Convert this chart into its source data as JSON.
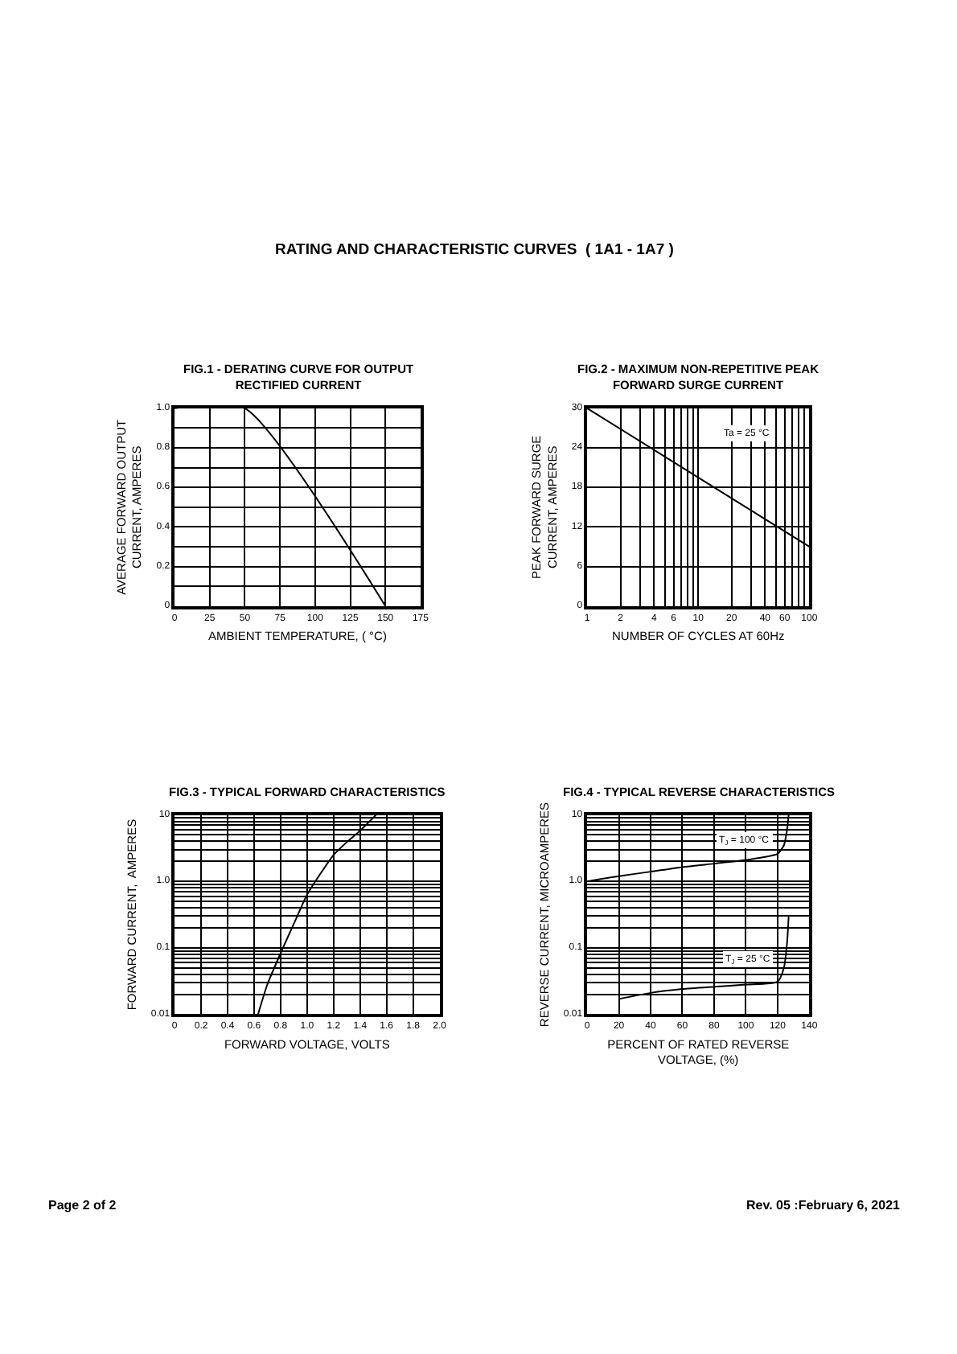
{
  "chart_data": [
    {
      "type": "line",
      "title": "FIG.1 - DERATING CURVE FOR OUTPUT\nRECTIFIED CURRENT",
      "xlabel": "AMBIENT TEMPERATURE, ( °C)",
      "ylabel": "AVERAGE FORWARD OUTPUT\nCURRENT, AMPERES",
      "x": [
        0,
        50,
        150
      ],
      "series": [
        {
          "color": "#000000",
          "values": [
            1.0,
            1.0,
            0
          ]
        }
      ],
      "xlim": [
        0,
        175
      ],
      "xticks": [
        0,
        25,
        50,
        75,
        100,
        125,
        150,
        175
      ],
      "ylim": [
        0,
        1.0
      ],
      "yticks": [
        0,
        {
          "value": 0.1,
          "label": null
        },
        {
          "value": 0.2,
          "label": "0.2"
        },
        {
          "value": 0.3,
          "label": null
        },
        {
          "value": 0.4,
          "label": "0.4"
        },
        {
          "value": 0.5,
          "label": null
        },
        {
          "value": 0.6,
          "label": "0.6"
        },
        {
          "value": 0.7,
          "label": null
        },
        {
          "value": 0.8,
          "label": "0.8"
        },
        {
          "value": 0.9,
          "label": null
        },
        {
          "value": 1.0,
          "label": "1.0"
        }
      ],
      "grid": true,
      "marker": "none",
      "line_style": "solid",
      "annotations": [
        "RATING AND CHARACTERISTIC CURVES  ( 1A1 - 1A7 )",
        "Page 2 of 2",
        "Rev. 05 :February 6, 2021"
      ]
    },
    {
      "type": "line",
      "title": "FIG.2 - MAXIMUM NON-REPETITIVE PEAK\nFORWARD SURGE CURRENT",
      "xlabel": "NUMBER OF CYCLES AT 60Hz",
      "ylabel": "PEAK FORWARD SURGE\nCURRENT, AMPERES",
      "x": [
        1,
        10,
        100
      ],
      "series": [
        {
          "color": "#000000",
          "values": [
            30,
            19.5,
            9
          ]
        }
      ],
      "log": "x",
      "xlim": [
        1,
        100
      ],
      "xticks": [
        1,
        2,
        {
          "value": 3,
          "label": null
        },
        4,
        {
          "value": 5,
          "label": null
        },
        6,
        {
          "value": 7,
          "label": null
        },
        {
          "value": 8,
          "label": null
        },
        {
          "value": 9,
          "label": null
        },
        10,
        20,
        {
          "value": 30,
          "label": null
        },
        40,
        {
          "value": 50,
          "label": null
        },
        60,
        {
          "value": 70,
          "label": null
        },
        {
          "value": 80,
          "label": null
        },
        {
          "value": 90,
          "label": null
        },
        100
      ],
      "ylim": [
        0,
        30
      ],
      "yticks": [
        0,
        6,
        12,
        18,
        24,
        30
      ],
      "grid": true,
      "marker": "none",
      "line_style": "solid",
      "annotations": [
        "Ta = 25 °C"
      ]
    },
    {
      "type": "line",
      "title": "FIG.3 - TYPICAL FORWARD CHARACTERISTICS",
      "xlabel": "FORWARD VOLTAGE, VOLTS",
      "ylabel": "FORWARD CURRENT,  AMPERES",
      "x": [
        0.63,
        0.7,
        0.8,
        0.9,
        1.0,
        1.1,
        1.2,
        1.3,
        1.4,
        1.52
      ],
      "series": [
        {
          "color": "#000000",
          "values": [
            0.01,
            0.028,
            0.083,
            0.23,
            0.63,
            1.3,
            2.5,
            3.9,
            5.8,
            10
          ]
        }
      ],
      "log": "y",
      "xlim": [
        0,
        2.0
      ],
      "xticks": [
        0,
        0.2,
        0.4,
        0.6,
        0.8,
        {
          "value": 1.0,
          "label": "1.0"
        },
        1.2,
        1.4,
        1.6,
        1.8,
        {
          "value": 2.0,
          "label": "2.0"
        }
      ],
      "ylim": [
        0.01,
        10
      ],
      "yticks": [
        0.01,
        {
          "value": 0.02,
          "label": null
        },
        {
          "value": 0.03,
          "label": null
        },
        {
          "value": 0.04,
          "label": null
        },
        {
          "value": 0.05,
          "label": null
        },
        {
          "value": 0.06,
          "label": null
        },
        {
          "value": 0.07,
          "label": null
        },
        {
          "value": 0.08,
          "label": null
        },
        {
          "value": 0.09,
          "label": null
        },
        0.1,
        {
          "value": 0.2,
          "label": null
        },
        {
          "value": 0.3,
          "label": null
        },
        {
          "value": 0.4,
          "label": null
        },
        {
          "value": 0.5,
          "label": null
        },
        {
          "value": 0.6,
          "label": null
        },
        {
          "value": 0.7,
          "label": null
        },
        {
          "value": 0.8,
          "label": null
        },
        {
          "value": 0.9,
          "label": null
        },
        {
          "value": 1,
          "label": "1.0"
        },
        {
          "value": 2,
          "label": null
        },
        {
          "value": 3,
          "label": null
        },
        {
          "value": 4,
          "label": null
        },
        {
          "value": 5,
          "label": null
        },
        {
          "value": 6,
          "label": null
        },
        {
          "value": 7,
          "label": null
        },
        {
          "value": 8,
          "label": null
        },
        {
          "value": 9,
          "label": null
        },
        10
      ],
      "grid": true,
      "marker": "none",
      "line_style": "solid"
    },
    {
      "type": "line",
      "title": "FIG.4 - TYPICAL REVERSE CHARACTERISTICS",
      "xlabel": "PERCENT OF RATED REVERSE\nVOLTAGE, (%)",
      "ylabel": "REVERSE CURRENT, MICROAMPERES",
      "series": [
        {
          "color": "#000000",
          "x": [
            0,
            20,
            40,
            60,
            80,
            100,
            120,
            124,
            126,
            127
          ],
          "values": [
            1.0,
            1.2,
            1.4,
            1.64,
            1.85,
            2.1,
            2.6,
            3.5,
            6,
            10
          ]
        },
        {
          "color": "#000000",
          "x": [
            20,
            40,
            60,
            80,
            100,
            120,
            124,
            126,
            127
          ],
          "values": [
            0.017,
            0.021,
            0.024,
            0.026,
            0.028,
            0.031,
            0.05,
            0.12,
            0.3
          ]
        }
      ],
      "log": "y",
      "xlim": [
        0,
        140
      ],
      "xticks": [
        0,
        20,
        40,
        60,
        80,
        100,
        120,
        140
      ],
      "ylim": [
        0.01,
        10
      ],
      "yticks": [
        0.01,
        {
          "value": 0.02,
          "label": null
        },
        {
          "value": 0.03,
          "label": null
        },
        {
          "value": 0.04,
          "label": null
        },
        {
          "value": 0.05,
          "label": null
        },
        {
          "value": 0.06,
          "label": null
        },
        {
          "value": 0.07,
          "label": null
        },
        {
          "value": 0.08,
          "label": null
        },
        {
          "value": 0.09,
          "label": null
        },
        0.1,
        {
          "value": 0.2,
          "label": null
        },
        {
          "value": 0.3,
          "label": null
        },
        {
          "value": 0.4,
          "label": null
        },
        {
          "value": 0.5,
          "label": null
        },
        {
          "value": 0.6,
          "label": null
        },
        {
          "value": 0.7,
          "label": null
        },
        {
          "value": 0.8,
          "label": null
        },
        {
          "value": 0.9,
          "label": null
        },
        {
          "value": 1,
          "label": "1.0"
        },
        {
          "value": 2,
          "label": null
        },
        {
          "value": 3,
          "label": null
        },
        {
          "value": 4,
          "label": null
        },
        {
          "value": 5,
          "label": null
        },
        {
          "value": 6,
          "label": null
        },
        {
          "value": 7,
          "label": null
        },
        {
          "value": 8,
          "label": null
        },
        {
          "value": 9,
          "label": null
        },
        10
      ],
      "grid": true,
      "marker": "none",
      "line_style": "solid",
      "annotations": [
        "T$_{J}$ = 100 °C",
        "T$_{J}$ = 25 °C"
      ]
    }
  ]
}
